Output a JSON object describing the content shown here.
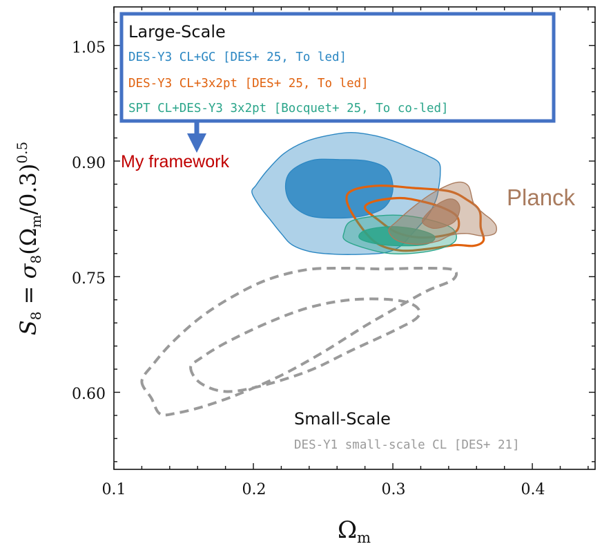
{
  "chart_data": {
    "type": "contour",
    "xlabel": "Ωm",
    "ylabel": "S8 = σ8(Ωm/0.3)^0.5",
    "xlim": [
      0.1,
      0.445
    ],
    "ylim": [
      0.5,
      1.1
    ],
    "xticks": [
      "0.1",
      "0.2",
      "0.3",
      "0.4"
    ],
    "xtick_values": [
      0.1,
      0.2,
      0.3,
      0.4
    ],
    "yticks": [
      "0.60",
      "0.75",
      "0.90",
      "1.05"
    ],
    "ytick_values": [
      0.6,
      0.75,
      0.9,
      1.05
    ],
    "colors": {
      "des_cl_gc": "#2a86c2",
      "des_cl_3x2pt": "#e0620f",
      "spt_cl": "#2aa58a",
      "planck": "#a97b5e",
      "small_scale": "#9a9a9a",
      "legend_box": "#4472c4",
      "annotation_red": "#c00000"
    },
    "large_scale_legend": {
      "title": "Large-Scale",
      "entries": [
        {
          "label": "DES-Y3 CL+GC [DES+ 25, To led]",
          "color": "#2a86c2"
        },
        {
          "label": "DES-Y3 CL+3x2pt [DES+ 25, To led]",
          "color": "#e0620f"
        },
        {
          "label": "SPT CL+DES-Y3 3x2pt [Bocquet+ 25, To co-led]",
          "color": "#2aa58a"
        }
      ]
    },
    "small_scale_legend": {
      "title": "Small-Scale",
      "entry": "DES-Y1 small-scale CL [DES+ 21]"
    },
    "annotations": {
      "planck": "Planck",
      "my_framework": "My framework"
    },
    "series": [
      {
        "name": "DES-Y3 CL+GC",
        "style": "filled",
        "outer": [
          [
            0.199,
            0.859
          ],
          [
            0.202,
            0.869
          ],
          [
            0.21,
            0.888
          ],
          [
            0.222,
            0.91
          ],
          [
            0.237,
            0.925
          ],
          [
            0.253,
            0.933
          ],
          [
            0.27,
            0.937
          ],
          [
            0.287,
            0.933
          ],
          [
            0.302,
            0.925
          ],
          [
            0.315,
            0.915
          ],
          [
            0.325,
            0.907
          ],
          [
            0.333,
            0.898
          ],
          [
            0.334,
            0.883
          ],
          [
            0.333,
            0.867
          ],
          [
            0.331,
            0.85
          ],
          [
            0.325,
            0.829
          ],
          [
            0.314,
            0.806
          ],
          [
            0.305,
            0.789
          ],
          [
            0.294,
            0.781
          ],
          [
            0.277,
            0.779
          ],
          [
            0.26,
            0.779
          ],
          [
            0.242,
            0.782
          ],
          [
            0.228,
            0.791
          ],
          [
            0.22,
            0.806
          ],
          [
            0.212,
            0.824
          ],
          [
            0.205,
            0.84
          ]
        ],
        "inner": [
          [
            0.223,
            0.867
          ],
          [
            0.227,
            0.887
          ],
          [
            0.242,
            0.901
          ],
          [
            0.262,
            0.902
          ],
          [
            0.282,
            0.9
          ],
          [
            0.296,
            0.889
          ],
          [
            0.3,
            0.863
          ],
          [
            0.294,
            0.84
          ],
          [
            0.279,
            0.829
          ],
          [
            0.26,
            0.826
          ],
          [
            0.24,
            0.829
          ],
          [
            0.227,
            0.845
          ]
        ]
      },
      {
        "name": "DES-Y3 CL+3x2pt",
        "style": "line",
        "outer": [
          [
            0.267,
            0.848
          ],
          [
            0.271,
            0.862
          ],
          [
            0.29,
            0.868
          ],
          [
            0.315,
            0.865
          ],
          [
            0.34,
            0.861
          ],
          [
            0.353,
            0.85
          ],
          [
            0.362,
            0.836
          ],
          [
            0.363,
            0.814
          ],
          [
            0.365,
            0.797
          ],
          [
            0.358,
            0.79
          ],
          [
            0.345,
            0.791
          ],
          [
            0.325,
            0.786
          ],
          [
            0.305,
            0.784
          ],
          [
            0.288,
            0.794
          ],
          [
            0.275,
            0.82
          ]
        ],
        "inner": [
          [
            0.28,
            0.839
          ],
          [
            0.287,
            0.848
          ],
          [
            0.305,
            0.852
          ],
          [
            0.32,
            0.848
          ],
          [
            0.335,
            0.84
          ],
          [
            0.346,
            0.828
          ],
          [
            0.346,
            0.81
          ],
          [
            0.335,
            0.803
          ],
          [
            0.318,
            0.801
          ],
          [
            0.302,
            0.808
          ],
          [
            0.29,
            0.823
          ]
        ]
      },
      {
        "name": "SPT CL+DES-Y3 3x2pt",
        "style": "filled",
        "outer": [
          [
            0.265,
            0.807
          ],
          [
            0.27,
            0.822
          ],
          [
            0.29,
            0.829
          ],
          [
            0.31,
            0.829
          ],
          [
            0.33,
            0.822
          ],
          [
            0.343,
            0.812
          ],
          [
            0.345,
            0.797
          ],
          [
            0.335,
            0.787
          ],
          [
            0.318,
            0.781
          ],
          [
            0.298,
            0.78
          ],
          [
            0.28,
            0.787
          ],
          [
            0.266,
            0.797
          ]
        ],
        "inner": [
          [
            0.276,
            0.8
          ],
          [
            0.28,
            0.81
          ],
          [
            0.298,
            0.815
          ],
          [
            0.318,
            0.811
          ],
          [
            0.33,
            0.802
          ],
          [
            0.324,
            0.792
          ],
          [
            0.305,
            0.79
          ],
          [
            0.287,
            0.793
          ]
        ]
      },
      {
        "name": "Planck",
        "style": "filled",
        "outer": [
          [
            0.297,
            0.81
          ],
          [
            0.303,
            0.822
          ],
          [
            0.315,
            0.841
          ],
          [
            0.329,
            0.859
          ],
          [
            0.345,
            0.872
          ],
          [
            0.354,
            0.868
          ],
          [
            0.358,
            0.845
          ],
          [
            0.365,
            0.832
          ],
          [
            0.37,
            0.825
          ],
          [
            0.374,
            0.816
          ],
          [
            0.373,
            0.806
          ],
          [
            0.364,
            0.803
          ],
          [
            0.353,
            0.806
          ],
          [
            0.342,
            0.804
          ],
          [
            0.332,
            0.796
          ],
          [
            0.317,
            0.792
          ],
          [
            0.303,
            0.797
          ]
        ],
        "inner": [
          [
            0.321,
            0.822
          ],
          [
            0.328,
            0.838
          ],
          [
            0.337,
            0.849
          ],
          [
            0.344,
            0.85
          ],
          [
            0.348,
            0.84
          ],
          [
            0.345,
            0.823
          ],
          [
            0.337,
            0.815
          ],
          [
            0.328,
            0.813
          ]
        ]
      },
      {
        "name": "DES-Y1 small-scale CL",
        "style": "dashed",
        "outer": [
          [
            0.12,
            0.614
          ],
          [
            0.127,
            0.592
          ],
          [
            0.133,
            0.572
          ],
          [
            0.145,
            0.573
          ],
          [
            0.165,
            0.582
          ],
          [
            0.19,
            0.598
          ],
          [
            0.22,
            0.622
          ],
          [
            0.25,
            0.652
          ],
          [
            0.28,
            0.686
          ],
          [
            0.305,
            0.712
          ],
          [
            0.325,
            0.732
          ],
          [
            0.343,
            0.746
          ],
          [
            0.343,
            0.759
          ],
          [
            0.32,
            0.761
          ],
          [
            0.293,
            0.76
          ],
          [
            0.265,
            0.761
          ],
          [
            0.238,
            0.759
          ],
          [
            0.21,
            0.746
          ],
          [
            0.185,
            0.724
          ],
          [
            0.162,
            0.697
          ],
          [
            0.142,
            0.665
          ],
          [
            0.128,
            0.636
          ]
        ],
        "inner": [
          [
            0.155,
            0.632
          ],
          [
            0.162,
            0.612
          ],
          [
            0.18,
            0.601
          ],
          [
            0.205,
            0.608
          ],
          [
            0.24,
            0.628
          ],
          [
            0.27,
            0.654
          ],
          [
            0.302,
            0.681
          ],
          [
            0.318,
            0.698
          ],
          [
            0.316,
            0.712
          ],
          [
            0.3,
            0.72
          ],
          [
            0.27,
            0.72
          ],
          [
            0.24,
            0.71
          ],
          [
            0.21,
            0.69
          ],
          [
            0.18,
            0.664
          ],
          [
            0.162,
            0.644
          ]
        ]
      }
    ]
  }
}
